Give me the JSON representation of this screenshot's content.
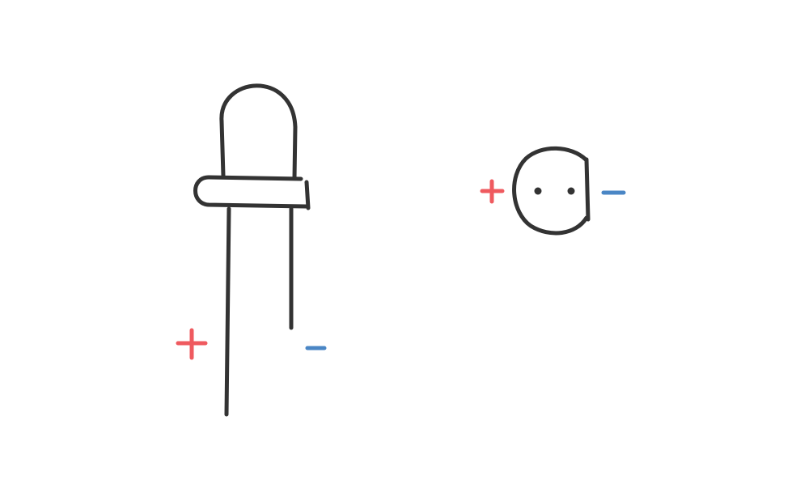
{
  "colors": {
    "ink": "#333333",
    "positive": "#ef5a5f",
    "negative": "#4a86c5",
    "background": "#ffffff"
  },
  "components": [
    {
      "name": "led-side-view",
      "parts": [
        "led-dome",
        "led-body",
        "led-flange",
        "anode-lead-long",
        "cathode-lead-short"
      ],
      "polarity_marks": [
        "plus-sign",
        "minus-sign"
      ]
    },
    {
      "name": "led-bottom-view",
      "parts": [
        "circular-base-with-flat-side",
        "lead-dot-anode",
        "lead-dot-cathode"
      ],
      "polarity_marks": [
        "plus-sign",
        "minus-sign"
      ]
    }
  ]
}
